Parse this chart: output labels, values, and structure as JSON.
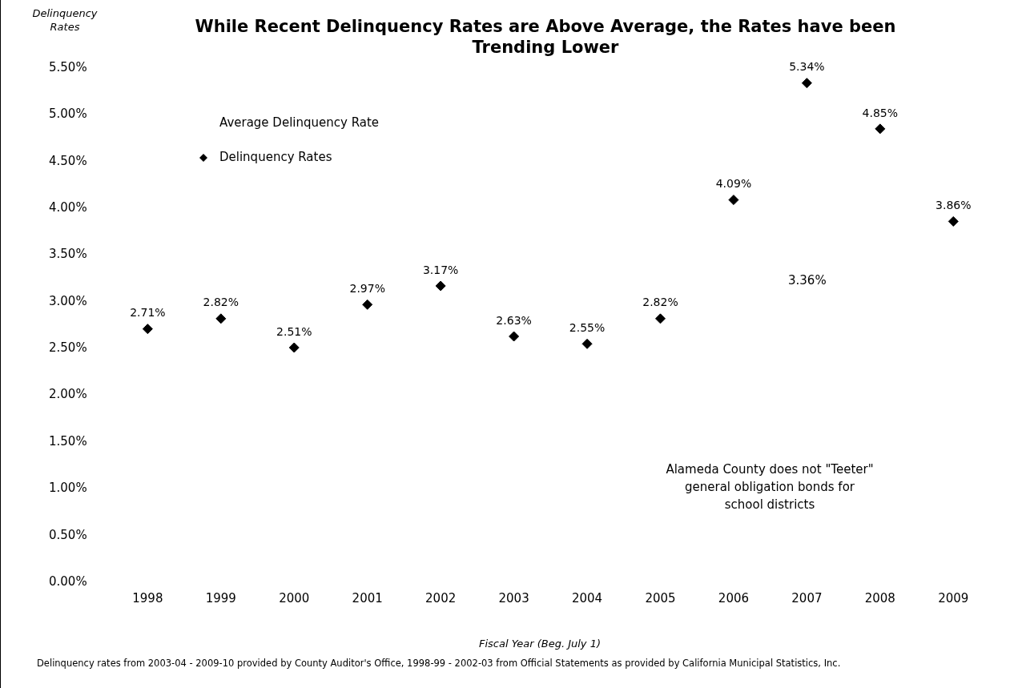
{
  "chart_data": {
    "type": "scatter",
    "title": "While Recent Delinquency Rates are Above Average, the Rates have been Trending Lower",
    "ylabel": "Delinquency Rates",
    "xlabel": "Fiscal Year (Beg. July 1)",
    "categories": [
      "1998",
      "1999",
      "2000",
      "2001",
      "2002",
      "2003",
      "2004",
      "2005",
      "2006",
      "2007",
      "2008",
      "2009"
    ],
    "series": [
      {
        "name": "Delinquency Rates",
        "color": "#000000",
        "values": [
          2.71,
          2.82,
          2.51,
          2.97,
          3.17,
          2.63,
          2.55,
          2.82,
          4.09,
          5.34,
          4.85,
          3.86
        ],
        "value_labels": [
          "2.71%",
          "2.82%",
          "2.51%",
          "2.97%",
          "3.17%",
          "2.63%",
          "2.55%",
          "2.82%",
          "4.09%",
          "5.34%",
          "4.85%",
          "3.86%"
        ]
      }
    ],
    "marker": "diamond",
    "ylim": [
      0,
      5.5
    ],
    "yticks": [
      {
        "value": 0,
        "label": "0.00%"
      },
      {
        "value": 0.5,
        "label": "0.50%"
      },
      {
        "value": 1,
        "label": "1.00%"
      },
      {
        "value": 1.5,
        "label": "1.50%"
      },
      {
        "value": 2,
        "label": "2.00%"
      },
      {
        "value": 2.5,
        "label": "2.50%"
      },
      {
        "value": 3,
        "label": "3.00%"
      },
      {
        "value": 3.5,
        "label": "3.50%"
      },
      {
        "value": 4,
        "label": "4.00%"
      },
      {
        "value": 4.5,
        "label": "4.50%"
      },
      {
        "value": 5,
        "label": "5.00%"
      },
      {
        "value": 5.5,
        "label": "5.50%"
      }
    ],
    "grid": false,
    "legend": "top left",
    "annotations": [
      "Average Delinquency Rate",
      "3.36%",
      "Alameda County does not \"Teeter\" general obligation bonds for school districts",
      "Delinquency rates from 2003-04 - 2009-10 provided by County Auditor's Office, 1998-99 - 2002-03 from Official Statements as provided by California Municipal Statistics, Inc."
    ]
  }
}
